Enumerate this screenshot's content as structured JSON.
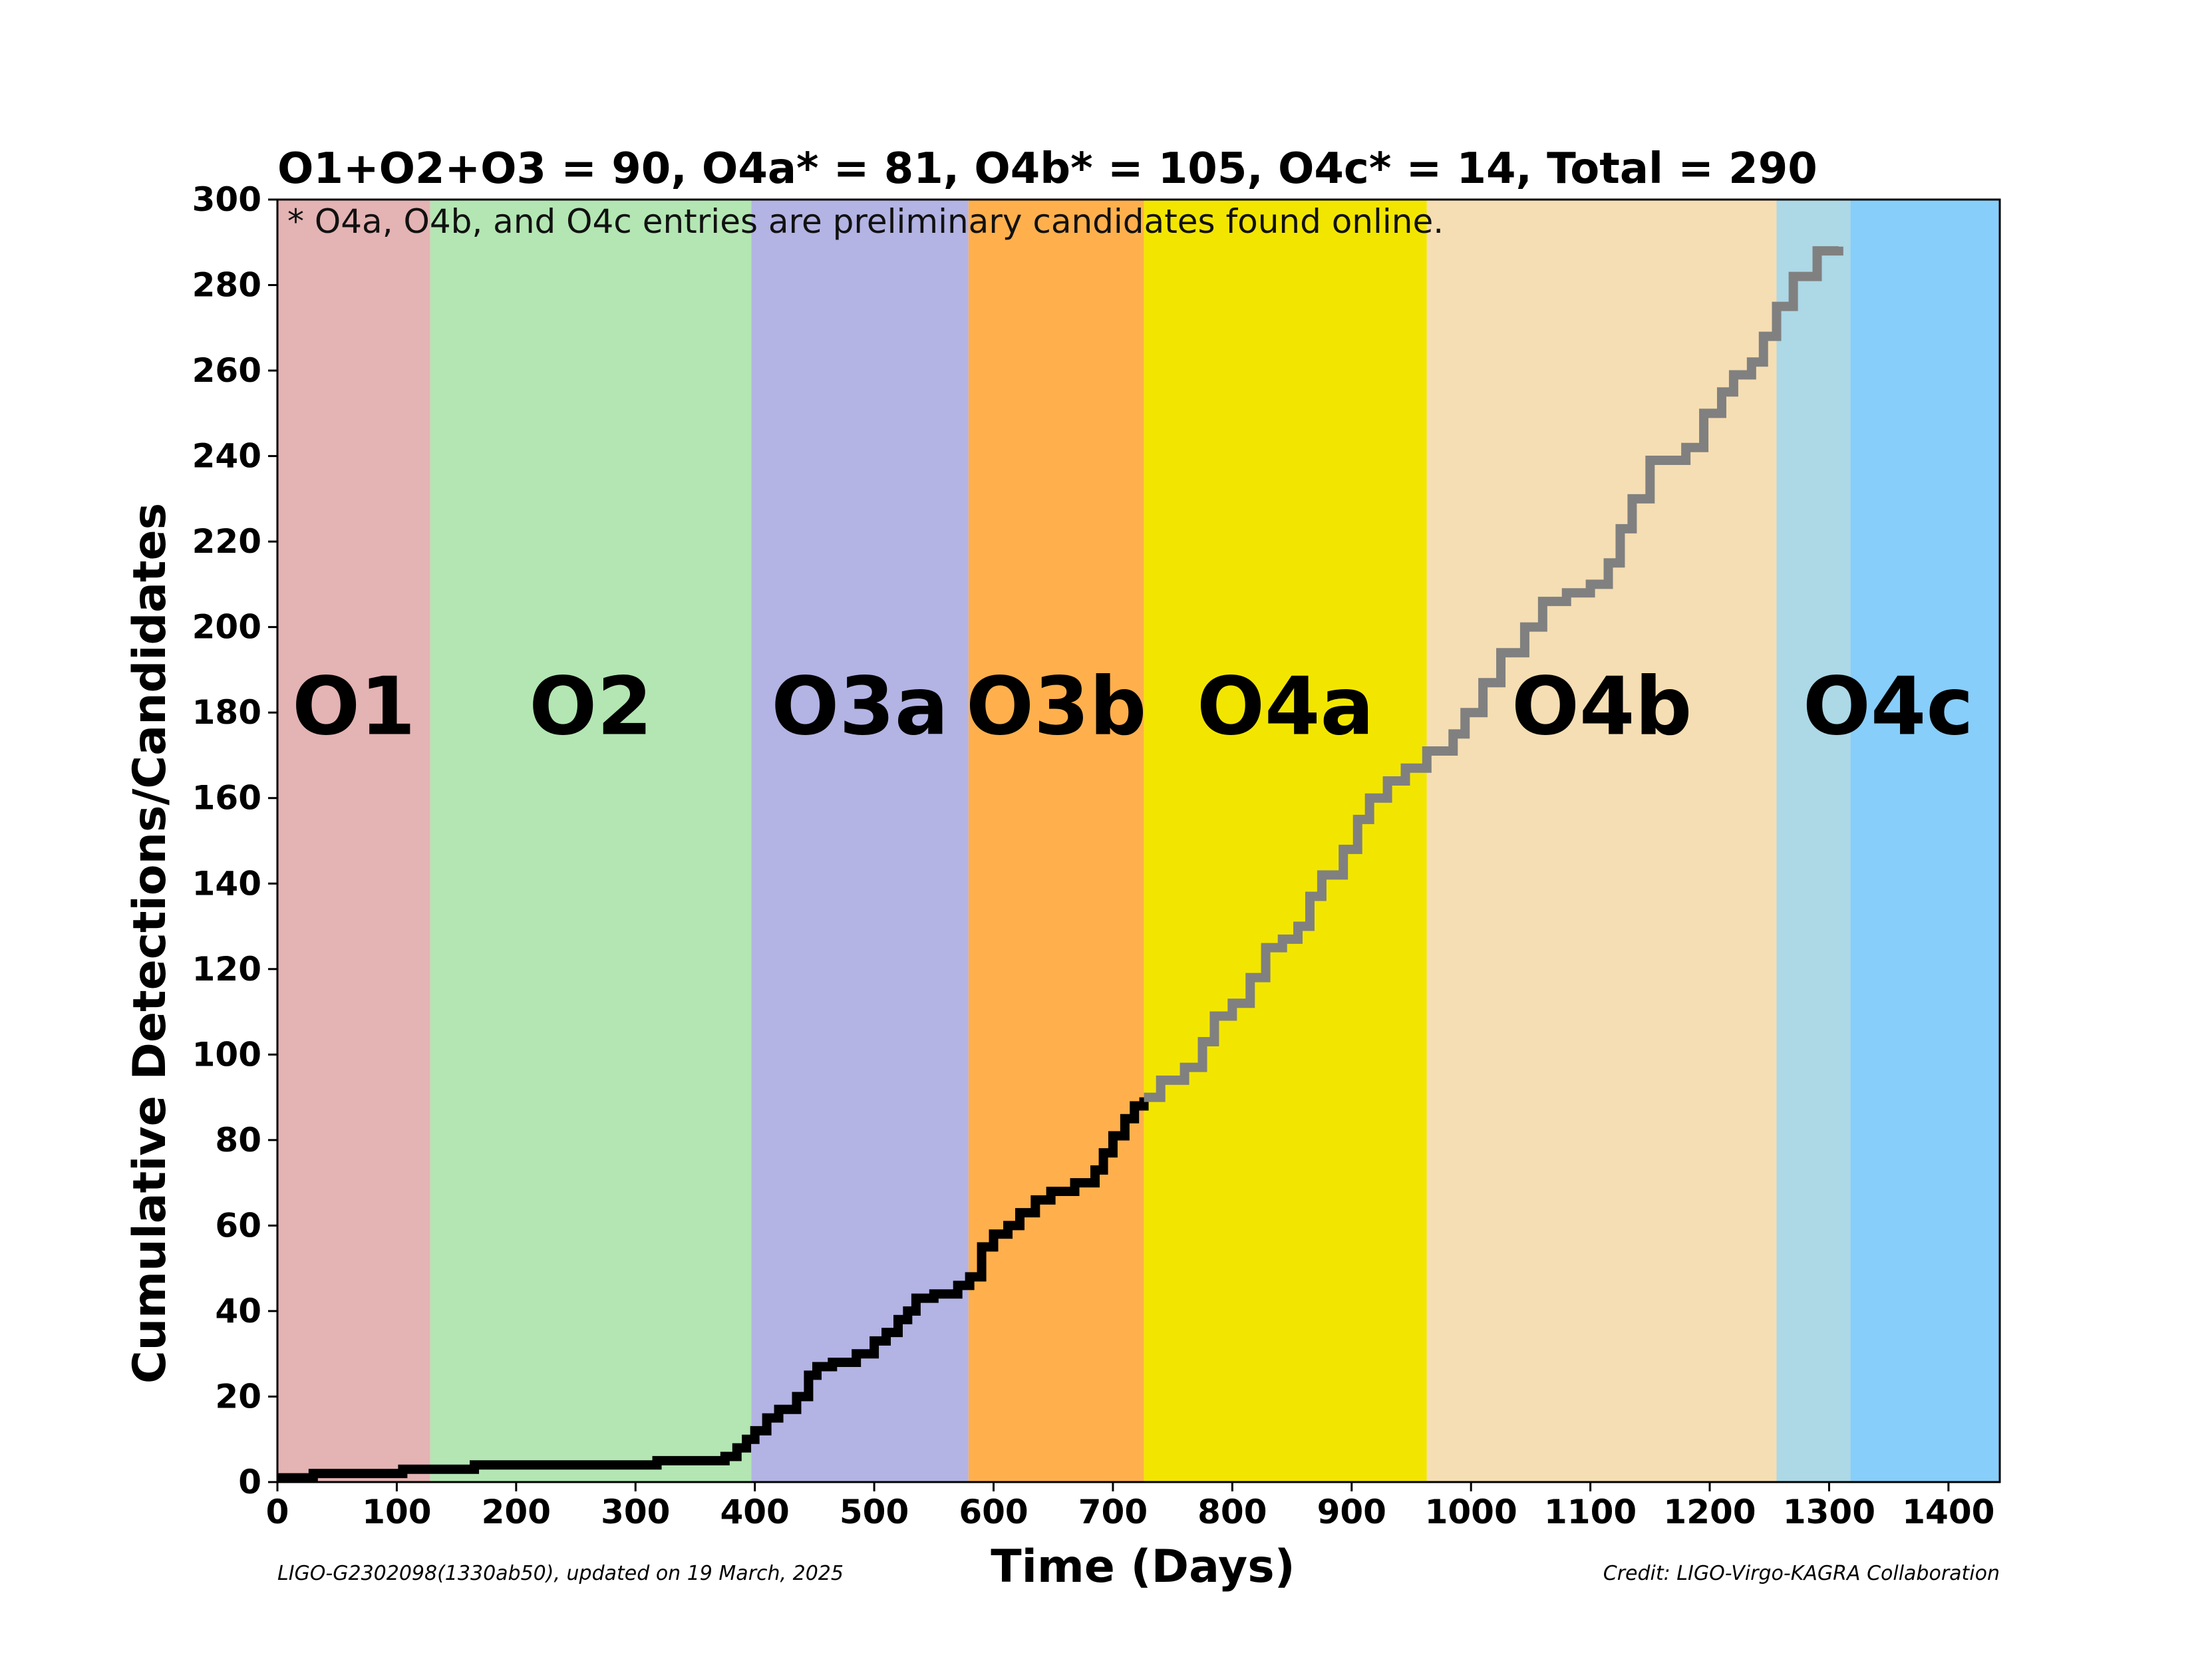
{
  "chart_data": {
    "type": "line",
    "title": "O1+O2+O3 = 90,  O4a* = 81,  O4b* = 105,  O4c* = 14, Total = 290",
    "annotation": "* O4a, O4b, and O4c entries are preliminary candidates found online.",
    "xlabel": "Time (Days)",
    "ylabel": "Cumulative Detections/Candidates",
    "xlim": [
      0,
      1443
    ],
    "ylim": [
      0,
      300
    ],
    "grid": false,
    "legend": "none",
    "x_ticks": [
      0,
      100,
      200,
      300,
      400,
      500,
      600,
      700,
      800,
      900,
      1000,
      1100,
      1200,
      1300,
      1400
    ],
    "y_ticks": [
      0,
      20,
      40,
      60,
      80,
      100,
      120,
      140,
      160,
      180,
      200,
      220,
      240,
      260,
      280,
      300
    ],
    "runs": [
      {
        "name": "O1",
        "start": 0,
        "end": 128,
        "color": "#e4b3b3"
      },
      {
        "name": "O2",
        "start": 128,
        "end": 397,
        "color": "#b3e6b3"
      },
      {
        "name": "O3a",
        "start": 397,
        "end": 579,
        "color": "#b3b3e4"
      },
      {
        "name": "O3b",
        "start": 579,
        "end": 726,
        "color": "#ffb04d"
      },
      {
        "name": "O4a",
        "start": 726,
        "end": 963,
        "color": "#f2e600"
      },
      {
        "name": "O4b",
        "start": 963,
        "end": 1256,
        "color": "#f5deb3"
      },
      {
        "name": "O4c",
        "start": 1256,
        "end": 1443,
        "color": "#87cefa",
        "prefix_end": 1318,
        "prefix_color": "#add8e6"
      }
    ],
    "series": [
      {
        "color": "#000000",
        "points": [
          [
            0,
            1
          ],
          [
            30,
            2
          ],
          [
            105,
            3
          ],
          [
            165,
            4
          ],
          [
            318,
            5
          ],
          [
            375,
            6
          ],
          [
            385,
            8
          ],
          [
            393,
            10
          ],
          [
            400,
            12
          ],
          [
            410,
            15
          ],
          [
            420,
            17
          ],
          [
            435,
            20
          ],
          [
            445,
            25
          ],
          [
            452,
            27
          ],
          [
            465,
            28
          ],
          [
            485,
            30
          ],
          [
            500,
            33
          ],
          [
            510,
            35
          ],
          [
            520,
            38
          ],
          [
            528,
            40
          ],
          [
            535,
            43
          ],
          [
            550,
            44
          ],
          [
            570,
            46
          ],
          [
            580,
            48
          ],
          [
            590,
            55
          ],
          [
            600,
            58
          ],
          [
            612,
            60
          ],
          [
            622,
            63
          ],
          [
            635,
            66
          ],
          [
            648,
            68
          ],
          [
            668,
            70
          ],
          [
            685,
            73
          ],
          [
            692,
            77
          ],
          [
            700,
            81
          ],
          [
            710,
            85
          ],
          [
            718,
            88
          ],
          [
            726,
            90
          ]
        ]
      },
      {
        "color": "#808080",
        "points": [
          [
            726,
            90
          ],
          [
            740,
            94
          ],
          [
            760,
            97
          ],
          [
            775,
            103
          ],
          [
            785,
            109
          ],
          [
            800,
            112
          ],
          [
            815,
            118
          ],
          [
            828,
            125
          ],
          [
            842,
            127
          ],
          [
            855,
            130
          ],
          [
            865,
            137
          ],
          [
            875,
            142
          ],
          [
            893,
            148
          ],
          [
            905,
            155
          ],
          [
            915,
            160
          ],
          [
            930,
            164
          ],
          [
            945,
            167
          ],
          [
            963,
            171
          ],
          [
            985,
            175
          ],
          [
            995,
            180
          ],
          [
            1010,
            187
          ],
          [
            1025,
            194
          ],
          [
            1045,
            200
          ],
          [
            1060,
            206
          ],
          [
            1080,
            208
          ],
          [
            1100,
            210
          ],
          [
            1115,
            215
          ],
          [
            1125,
            223
          ],
          [
            1135,
            230
          ],
          [
            1150,
            239
          ],
          [
            1180,
            242
          ],
          [
            1195,
            250
          ],
          [
            1210,
            255
          ],
          [
            1220,
            259
          ],
          [
            1235,
            262
          ],
          [
            1245,
            268
          ],
          [
            1256,
            275
          ],
          [
            1270,
            282
          ],
          [
            1290,
            288
          ],
          [
            1308,
            289
          ]
        ]
      }
    ]
  },
  "footer": {
    "left": "LIGO-G2302098(1330ab50), updated on 19 March, 2025",
    "right": "Credit: LIGO-Virgo-KAGRA Collaboration"
  }
}
